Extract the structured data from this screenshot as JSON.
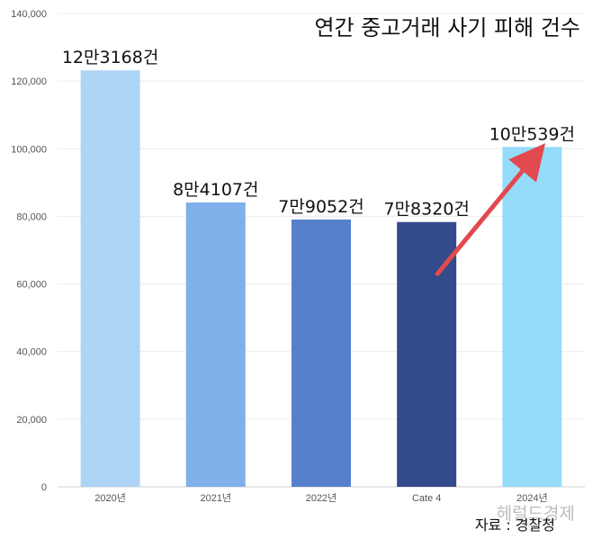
{
  "chart_data": {
    "type": "bar",
    "title": "연간 중고거래 사기 피해 건수",
    "categories": [
      "2020년",
      "2021년",
      "2022년",
      "Cate 4",
      "2024년"
    ],
    "values": [
      123168,
      84107,
      79052,
      78320,
      100539
    ],
    "data_labels": [
      "12만3168건",
      "8만4107건",
      "7만9052건",
      "7만8320건",
      "10만539건"
    ],
    "colors": [
      "#aed4f5",
      "#7fb0ea",
      "#5680cb",
      "#334a8b",
      "#95dcfb"
    ],
    "ylim": [
      0,
      140000
    ],
    "yticks": [
      "0",
      "20,000",
      "40,000",
      "60,000",
      "80,000",
      "100,000",
      "120,000",
      "140,000"
    ],
    "ytick_values": [
      0,
      20000,
      40000,
      60000,
      80000,
      100000,
      120000,
      140000
    ],
    "grid": true,
    "arrow_color": "#e2494f"
  },
  "source_text": "자료 : 경찰청",
  "watermark_text": "헤럴드경제"
}
